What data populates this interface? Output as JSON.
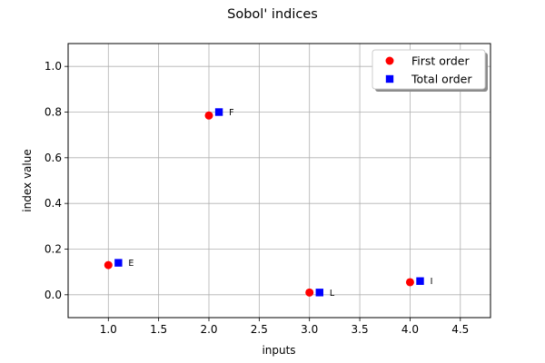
{
  "chart_data": {
    "type": "scatter",
    "title": "Sobol' indices",
    "xlabel": "inputs",
    "ylabel": "index value",
    "xlim": [
      0.6,
      4.8
    ],
    "ylim": [
      -0.1,
      1.1
    ],
    "x_ticks": [
      1.0,
      1.5,
      2.0,
      2.5,
      3.0,
      3.5,
      4.0,
      4.5
    ],
    "x_tick_labels": [
      "1.0",
      "1.5",
      "2.0",
      "2.5",
      "3.0",
      "3.5",
      "4.0",
      "4.5"
    ],
    "y_ticks": [
      0.0,
      0.2,
      0.4,
      0.6,
      0.8,
      1.0
    ],
    "y_tick_labels": [
      "0.0",
      "0.2",
      "0.4",
      "0.6",
      "0.8",
      "1.0"
    ],
    "grid": true,
    "legend_position": "top-right",
    "series": [
      {
        "name": "First order",
        "marker": "circle",
        "color": "#ff0000",
        "x": [
          1.0,
          2.0,
          3.0,
          4.0
        ],
        "y": [
          0.13,
          0.785,
          0.01,
          0.055
        ]
      },
      {
        "name": "Total order",
        "marker": "square",
        "color": "#0000ff",
        "x": [
          1.1,
          2.1,
          3.1,
          4.1
        ],
        "y": [
          0.14,
          0.8,
          0.01,
          0.06
        ]
      }
    ],
    "annotations": [
      {
        "text": "E",
        "x": 1.2,
        "y": 0.14
      },
      {
        "text": "F",
        "x": 2.2,
        "y": 0.8
      },
      {
        "text": "L",
        "x": 3.2,
        "y": 0.01
      },
      {
        "text": "I",
        "x": 4.2,
        "y": 0.06
      }
    ]
  }
}
